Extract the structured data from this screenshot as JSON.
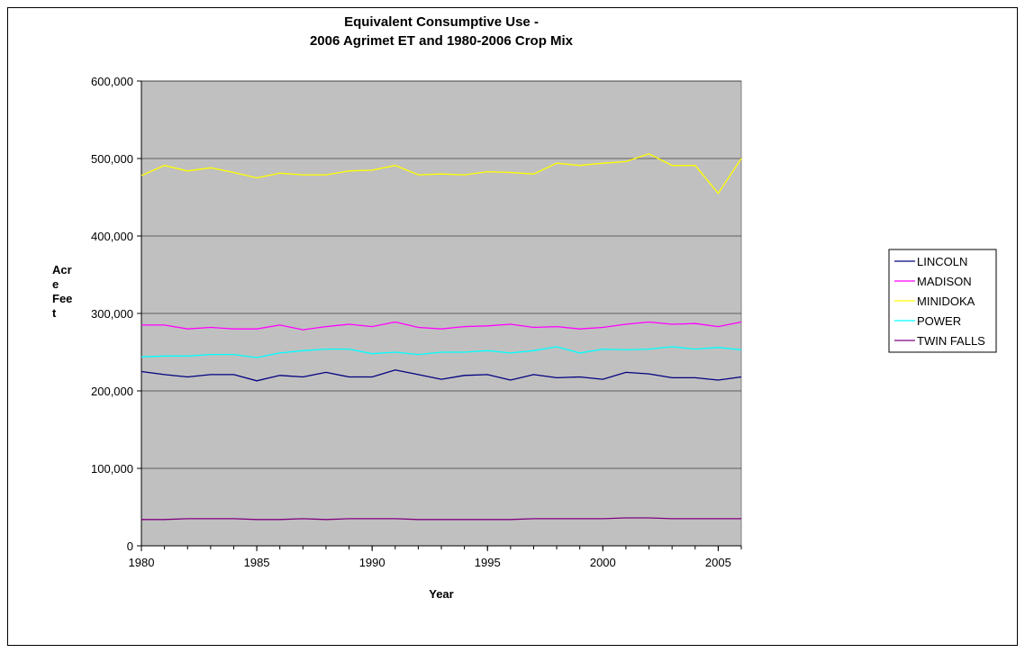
{
  "chart_data": {
    "type": "line",
    "title": "Equivalent Consumptive Use -",
    "subtitle": "2006 Agrimet ET and 1980-2006 Crop Mix",
    "xlabel": "Year",
    "ylabel_lines": [
      "Acr",
      "e",
      "Fee",
      "t"
    ],
    "xlim": [
      1980,
      2006
    ],
    "ylim": [
      0,
      600000
    ],
    "x_ticks": [
      1980,
      1985,
      1990,
      1995,
      2000,
      2005
    ],
    "x_tick_labels": [
      "1980",
      "1985",
      "1990",
      "1995",
      "2000",
      "2005"
    ],
    "y_ticks": [
      0,
      100000,
      200000,
      300000,
      400000,
      500000,
      600000
    ],
    "y_tick_labels": [
      "0",
      "100,000",
      "200,000",
      "300,000",
      "400,000",
      "500,000",
      "600,000"
    ],
    "grid": true,
    "plot_background": "#c0c0c0",
    "legend_position": "right",
    "x": [
      1980,
      1981,
      1982,
      1983,
      1984,
      1985,
      1986,
      1987,
      1988,
      1989,
      1990,
      1991,
      1992,
      1993,
      1994,
      1995,
      1996,
      1997,
      1998,
      1999,
      2000,
      2001,
      2002,
      2003,
      2004,
      2005,
      2006
    ],
    "series": [
      {
        "name": "LINCOLN",
        "color": "#000080",
        "values": [
          225000,
          221000,
          218000,
          221000,
          221000,
          213000,
          220000,
          218000,
          224000,
          218000,
          218000,
          227000,
          221000,
          215000,
          220000,
          221000,
          214000,
          221000,
          217000,
          218000,
          215000,
          224000,
          222000,
          217000,
          217000,
          214000,
          218000
        ]
      },
      {
        "name": "MADISON",
        "color": "#ff00ff",
        "values": [
          285000,
          285000,
          280000,
          282000,
          280000,
          280000,
          285000,
          279000,
          283000,
          286000,
          283000,
          289000,
          282000,
          280000,
          283000,
          284000,
          286000,
          282000,
          283000,
          280000,
          282000,
          286000,
          289000,
          286000,
          287000,
          283000,
          289000
        ]
      },
      {
        "name": "MINIDOKA",
        "color": "#ffff00",
        "values": [
          478000,
          491000,
          484000,
          488000,
          482000,
          475000,
          481000,
          479000,
          479000,
          484000,
          485000,
          491000,
          479000,
          480000,
          479000,
          483000,
          482000,
          480000,
          494000,
          491000,
          494000,
          496000,
          506000,
          491000,
          491000,
          455000,
          500000
        ]
      },
      {
        "name": "POWER",
        "color": "#00ffff",
        "values": [
          244000,
          245000,
          245000,
          247000,
          247000,
          243000,
          249000,
          252000,
          254000,
          254000,
          248000,
          250000,
          247000,
          250000,
          250000,
          252000,
          249000,
          252000,
          257000,
          249000,
          254000,
          253000,
          254000,
          257000,
          254000,
          256000,
          253000
        ]
      },
      {
        "name": "TWIN FALLS",
        "color": "#800080",
        "values": [
          34000,
          34000,
          35000,
          35000,
          35000,
          34000,
          34000,
          35000,
          34000,
          35000,
          35000,
          35000,
          34000,
          34000,
          34000,
          34000,
          34000,
          35000,
          35000,
          35000,
          35000,
          36000,
          36000,
          35000,
          35000,
          35000,
          35000
        ]
      }
    ]
  }
}
